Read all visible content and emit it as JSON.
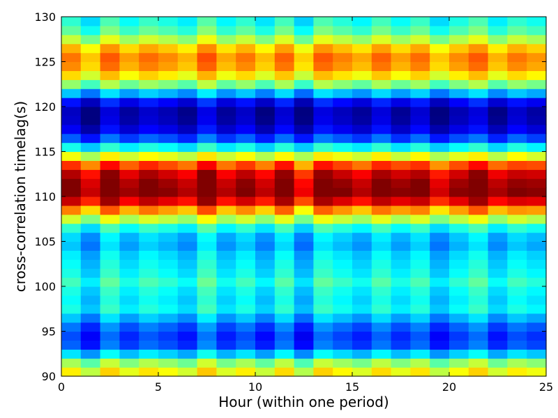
{
  "chart_data": {
    "type": "heatmap",
    "title": "",
    "xlabel": "Hour (within one period)",
    "ylabel": "cross-correlation timelag(s)",
    "xlim": [
      0,
      25
    ],
    "ylim": [
      90,
      130
    ],
    "xticks": [
      0,
      5,
      10,
      15,
      20,
      25
    ],
    "yticks": [
      90,
      95,
      100,
      105,
      110,
      115,
      120,
      125,
      130
    ],
    "colormap": "jet",
    "color_range": [
      0.0,
      1.0
    ],
    "columns": 25,
    "rows_bottom_to_top": 40,
    "base_profile": [
      0.62,
      0.52,
      0.33,
      0.2,
      0.18,
      0.22,
      0.3,
      0.38,
      0.36,
      0.38,
      0.42,
      0.38,
      0.36,
      0.34,
      0.3,
      0.32,
      0.4,
      0.56,
      0.72,
      0.9,
      0.99,
      0.97,
      0.92,
      0.8,
      0.6,
      0.38,
      0.2,
      0.1,
      0.06,
      0.05,
      0.12,
      0.3,
      0.5,
      0.64,
      0.72,
      0.74,
      0.68,
      0.55,
      0.45,
      0.4
    ],
    "column_offsets": [
      0.02,
      -0.06,
      0.05,
      -0.02,
      0.03,
      0.0,
      -0.04,
      0.06,
      -0.03,
      0.02,
      -0.05,
      0.04,
      -0.07,
      0.05,
      0.01,
      -0.03,
      0.04,
      -0.02,
      0.03,
      -0.06,
      0.0,
      0.05,
      -0.04,
      0.02,
      -0.01
    ],
    "band_boost": [
      0.01,
      0.0,
      0.02,
      0.0,
      0.01,
      0.0,
      0.0,
      0.02,
      -0.01,
      0.0,
      0.0,
      0.02,
      -0.03,
      0.01,
      0.0,
      -0.01,
      0.0,
      0.02,
      0.0,
      -0.01,
      0.0,
      0.02,
      0.01,
      -0.01,
      0.01
    ]
  }
}
